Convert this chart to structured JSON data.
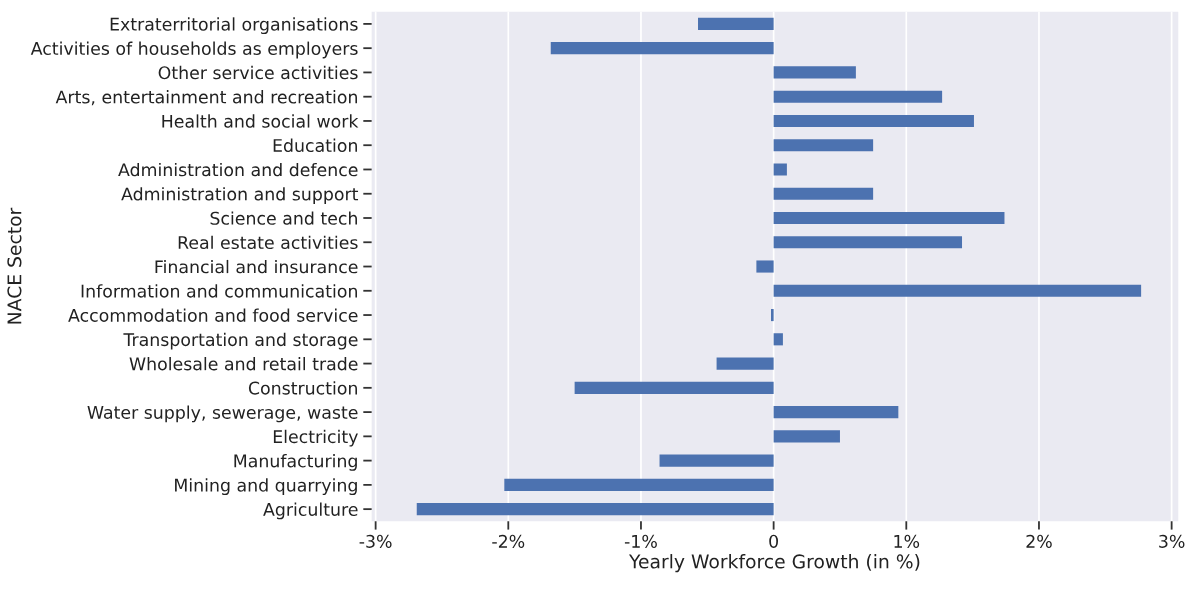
{
  "chart_data": {
    "type": "bar",
    "orientation": "horizontal",
    "xlabel": "Yearly Workforce Growth (in %)",
    "ylabel": "NACE Sector",
    "categories": [
      "Extraterritorial organisations",
      "Activities of households as employers",
      "Other service activities",
      "Arts, entertainment and recreation",
      "Health and social work",
      "Education",
      "Administration and defence",
      "Administration and support",
      "Science and tech",
      "Real estate activities",
      "Financial and insurance",
      "Information and communication",
      "Accommodation and food service",
      "Transportation and storage",
      "Wholesale and retail trade",
      "Construction",
      "Water supply, sewerage, waste",
      "Electricity",
      "Manufacturing",
      "Mining and quarrying",
      "Agriculture"
    ],
    "values": [
      -0.57,
      -1.68,
      0.62,
      1.27,
      1.51,
      0.75,
      0.1,
      0.75,
      1.74,
      1.42,
      -0.13,
      2.77,
      -0.02,
      0.07,
      -0.43,
      -1.5,
      0.94,
      0.5,
      -0.86,
      -2.03,
      -2.69
    ],
    "color": "#4c72b0",
    "xlim": [
      -3.03,
      3.05
    ],
    "xticks": [
      {
        "value": -3,
        "label": "-3%"
      },
      {
        "value": -2,
        "label": "-2%"
      },
      {
        "value": -1,
        "label": "-1%"
      },
      {
        "value": 0,
        "label": "0"
      },
      {
        "value": 1,
        "label": "1%"
      },
      {
        "value": 2,
        "label": "2%"
      },
      {
        "value": 3,
        "label": "3%"
      }
    ],
    "grid": "x"
  }
}
